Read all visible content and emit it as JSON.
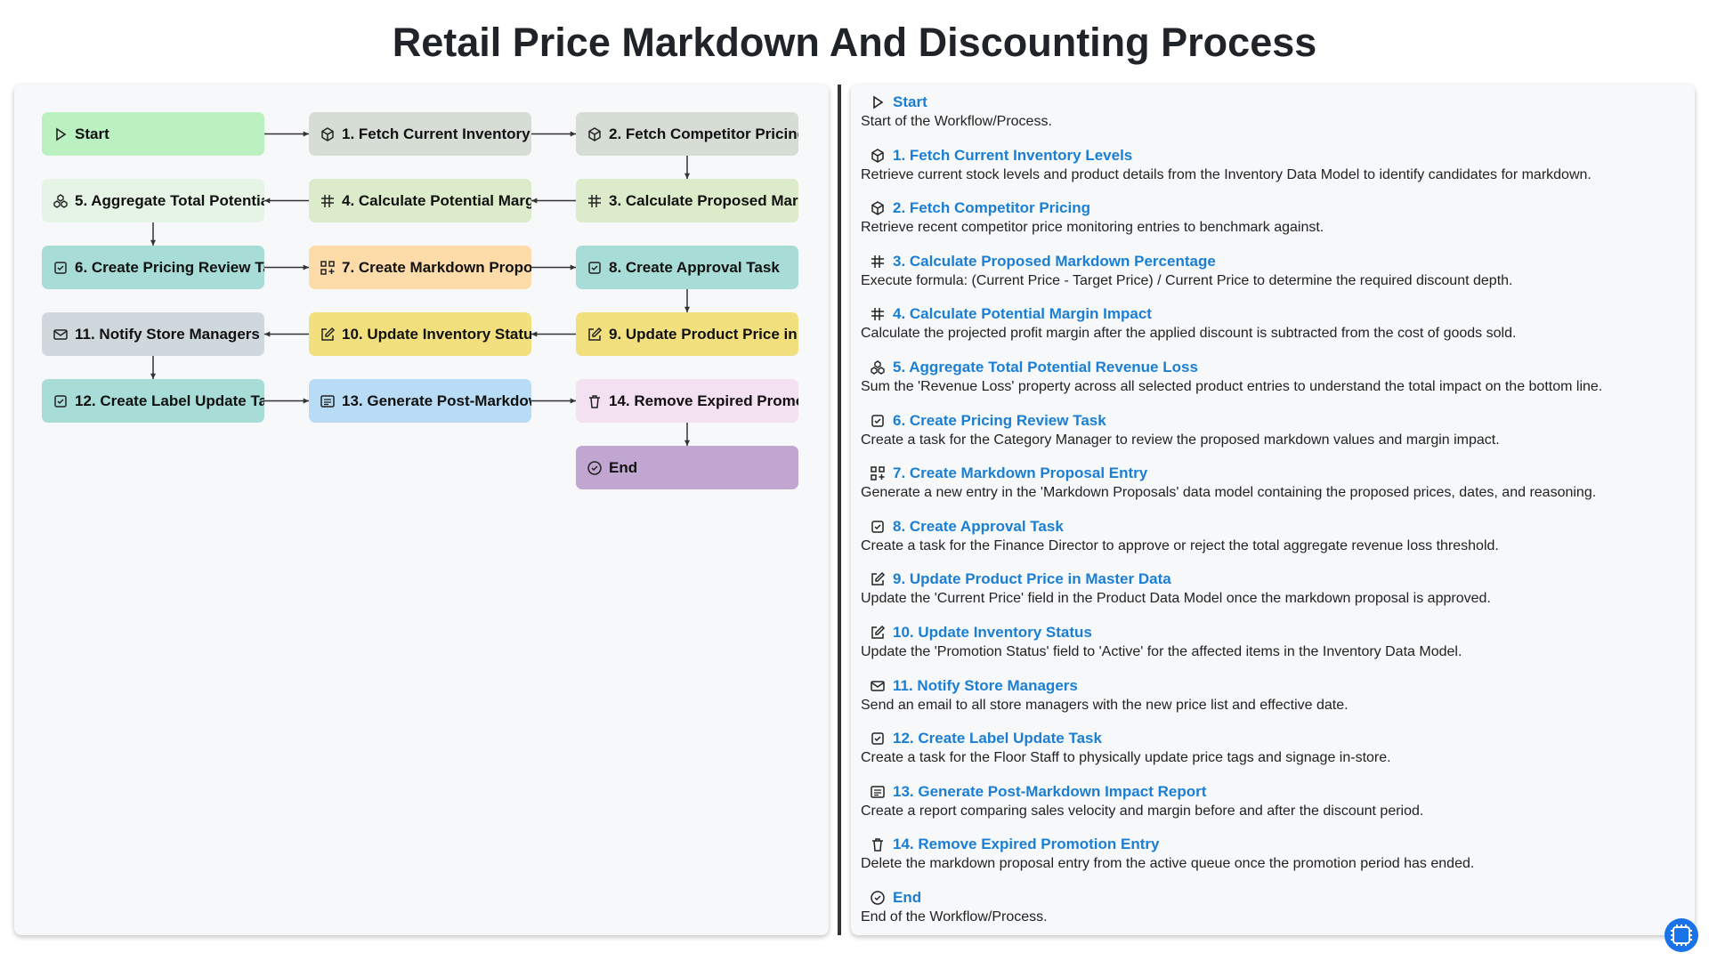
{
  "header": {
    "title": "Retail Price Markdown And Discounting Process"
  },
  "steps": [
    {
      "title": "Start",
      "description": "Start of the Workflow/Process."
    },
    {
      "title": "1. Fetch Current Inventory Levels",
      "description": "Retrieve current stock levels and product details from the Inventory Data Model to identify candidates for markdown."
    },
    {
      "title": "2. Fetch Competitor Pricing",
      "description": "Retrieve recent competitor price monitoring entries to benchmark against."
    },
    {
      "title": "3. Calculate Proposed Markdown Percentage",
      "description": "Execute formula: (Current Price - Target Price) / Current Price to determine the required discount depth."
    },
    {
      "title": "4. Calculate Potential Margin Impact",
      "description": "Calculate the projected profit margin after the applied discount is subtracted from the cost of goods sold."
    },
    {
      "title": "5. Aggregate Total Potential Revenue Loss",
      "description": "Sum the 'Revenue Loss' property across all selected product entries to understand the total impact on the bottom line."
    },
    {
      "title": "6. Create Pricing Review Task",
      "description": "Create a task for the Category Manager to review the proposed markdown values and margin impact."
    },
    {
      "title": "7. Create Markdown Proposal Entry",
      "description": "Generate a new entry in the 'Markdown Proposals' data model containing the proposed prices, dates, and reasoning."
    },
    {
      "title": "8. Create Approval Task",
      "description": "Create a task for the Finance Director to approve or reject the total aggregate revenue loss threshold."
    },
    {
      "title": "9. Update Product Price in Master Data",
      "description": "Update the 'Current Price' field in the Product Data Model once the markdown proposal is approved."
    },
    {
      "title": "10. Update Inventory Status",
      "description": "Update the 'Promotion Status' field to 'Active' for the affected items in the Inventory Data Model."
    },
    {
      "title": "11. Notify Store Managers",
      "description": "Send an email to all store managers with the new price list and effective date."
    },
    {
      "title": "12. Create Label Update Task",
      "description": "Create a task for the Floor Staff to physically update price tags and signage in-store."
    },
    {
      "title": "13. Generate Post-Markdown Impact Report",
      "description": "Create a report comparing sales velocity and margin before and after the discount period."
    },
    {
      "title": "14. Remove Expired Promotion Entry",
      "description": "Delete the markdown proposal entry from the active queue once the promotion period has ended."
    },
    {
      "title": "End",
      "description": "End of the Workflow/Process."
    }
  ]
}
